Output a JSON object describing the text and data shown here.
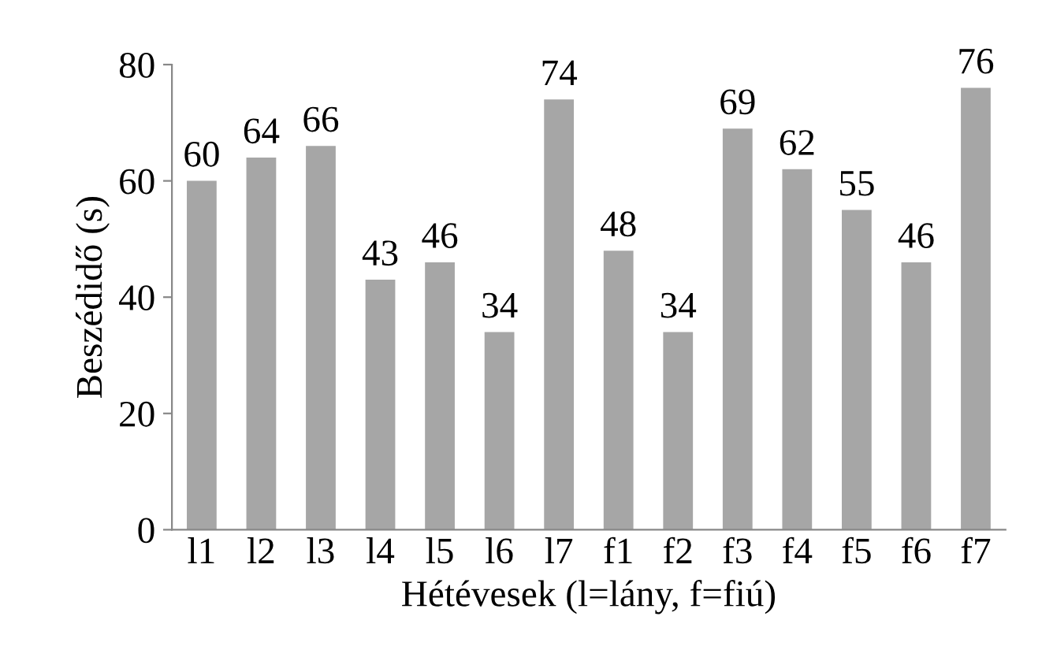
{
  "chart_data": {
    "type": "bar",
    "xlabel": "Hétévesek (l=lány, f=fiú)",
    "ylabel": "Beszédidő (s)",
    "categories": [
      "l1",
      "l2",
      "l3",
      "l4",
      "l5",
      "l6",
      "l7",
      "f1",
      "f2",
      "f3",
      "f4",
      "f5",
      "f6",
      "f7"
    ],
    "values": [
      60,
      64,
      66,
      43,
      46,
      34,
      74,
      48,
      34,
      69,
      62,
      55,
      46,
      76
    ],
    "color": "#a6a6a6",
    "ylim": [
      0,
      80
    ],
    "yticks": [
      0,
      20,
      40,
      60,
      80
    ],
    "grid": false,
    "data_labels": true
  }
}
